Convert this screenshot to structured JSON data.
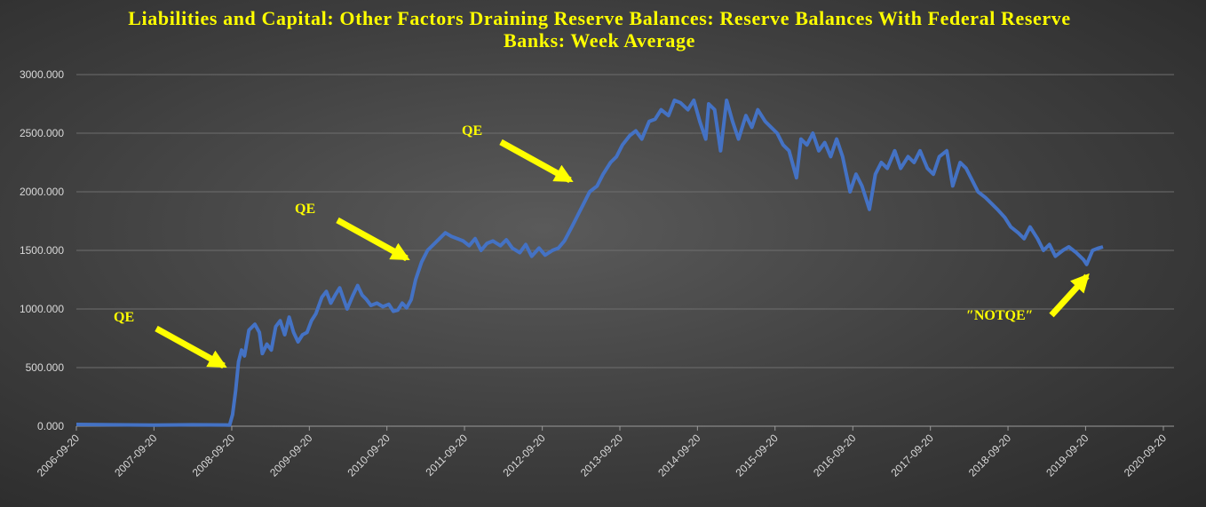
{
  "chart_data": {
    "type": "line",
    "title": "Liabilities and Capital: Other Factors Draining Reserve Balances: Reserve Balances With Federal Reserve Banks: Week Average",
    "annotations": [
      "QE",
      "QE",
      "QE",
      "″NOTQE″"
    ],
    "xlim": [
      "2006-09-20",
      "2020-09-20"
    ],
    "xticks": [
      "2006-09-20",
      "2007-09-20",
      "2008-09-20",
      "2009-09-20",
      "2010-09-20",
      "2011-09-20",
      "2012-09-20",
      "2013-09-20",
      "2014-09-20",
      "2015-09-20",
      "2016-09-20",
      "2017-09-20",
      "2018-09-20",
      "2019-09-20",
      "2020-09-20"
    ],
    "ylim": [
      0,
      3000
    ],
    "yticks": [
      {
        "value": 0,
        "label": "0.000"
      },
      {
        "value": 500,
        "label": "500.000"
      },
      {
        "value": 1000,
        "label": "1000.000"
      },
      {
        "value": 1500,
        "label": "1500.000"
      },
      {
        "value": 2000,
        "label": "2000.000"
      },
      {
        "value": 2500,
        "label": "2500.000"
      },
      {
        "value": 3000,
        "label": "3000.000"
      }
    ],
    "grid": true,
    "series": [
      {
        "name": "Reserve Balances With Federal Reserve Banks: Week Average",
        "color": "#4472c4",
        "x": [
          "2006-09-20",
          "2007-03-21",
          "2007-09-19",
          "2008-03-19",
          "2008-09-10",
          "2008-09-24",
          "2008-10-08",
          "2008-10-22",
          "2008-11-05",
          "2008-11-19",
          "2008-12-10",
          "2009-01-07",
          "2009-01-28",
          "2009-02-11",
          "2009-03-04",
          "2009-03-25",
          "2009-04-15",
          "2009-05-06",
          "2009-05-27",
          "2009-06-17",
          "2009-07-08",
          "2009-07-29",
          "2009-08-19",
          "2009-09-09",
          "2009-09-30",
          "2009-10-21",
          "2009-11-18",
          "2009-12-09",
          "2009-12-30",
          "2010-01-20",
          "2010-02-10",
          "2010-03-03",
          "2010-03-17",
          "2010-04-14",
          "2010-05-05",
          "2010-05-26",
          "2010-06-16",
          "2010-07-07",
          "2010-08-04",
          "2010-09-01",
          "2010-09-29",
          "2010-10-20",
          "2010-11-10",
          "2010-12-01",
          "2010-12-22",
          "2011-01-12",
          "2011-02-02",
          "2011-03-02",
          "2011-03-30",
          "2011-04-27",
          "2011-05-25",
          "2011-06-22",
          "2011-07-20",
          "2011-08-17",
          "2011-09-14",
          "2011-10-12",
          "2011-11-09",
          "2011-12-07",
          "2012-01-04",
          "2012-02-01",
          "2012-03-07",
          "2012-04-04",
          "2012-05-02",
          "2012-06-06",
          "2012-07-04",
          "2012-08-01",
          "2012-09-05",
          "2012-10-03",
          "2012-11-07",
          "2012-12-05",
          "2013-01-02",
          "2013-02-06",
          "2013-03-06",
          "2013-04-03",
          "2013-05-01",
          "2013-06-05",
          "2013-07-03",
          "2013-08-07",
          "2013-09-04",
          "2013-10-02",
          "2013-11-06",
          "2013-12-04",
          "2014-01-01",
          "2014-02-05",
          "2014-03-05",
          "2014-04-02",
          "2014-05-07",
          "2014-06-04",
          "2014-07-02",
          "2014-08-06",
          "2014-09-03",
          "2014-10-01",
          "2014-10-29",
          "2014-11-12",
          "2014-12-10",
          "2015-01-07",
          "2015-02-04",
          "2015-03-04",
          "2015-04-01",
          "2015-05-06",
          "2015-06-03",
          "2015-07-01",
          "2015-08-05",
          "2015-09-02",
          "2015-09-30",
          "2015-10-28",
          "2015-11-25",
          "2015-12-30",
          "2016-01-20",
          "2016-02-17",
          "2016-03-16",
          "2016-04-13",
          "2016-05-11",
          "2016-06-08",
          "2016-07-06",
          "2016-08-03",
          "2016-09-07",
          "2016-10-05",
          "2016-11-02",
          "2016-12-07",
          "2017-01-04",
          "2017-02-01",
          "2017-03-01",
          "2017-04-05",
          "2017-05-03",
          "2017-06-07",
          "2017-07-05",
          "2017-08-02",
          "2017-09-06",
          "2017-10-04",
          "2017-11-01",
          "2017-12-06",
          "2018-01-03",
          "2018-02-07",
          "2018-03-07",
          "2018-04-04",
          "2018-05-02",
          "2018-06-06",
          "2018-07-04",
          "2018-08-01",
          "2018-09-05",
          "2018-10-03",
          "2018-11-07",
          "2018-12-05",
          "2019-01-02",
          "2019-02-06",
          "2019-03-06",
          "2019-04-03",
          "2019-05-01",
          "2019-06-05",
          "2019-07-03",
          "2019-08-07",
          "2019-09-11",
          "2019-09-25",
          "2019-10-23",
          "2019-11-20",
          "2019-12-11"
        ],
        "values": [
          15,
          12,
          10,
          12,
          10,
          100,
          300,
          550,
          650,
          600,
          820,
          870,
          800,
          620,
          700,
          650,
          850,
          900,
          780,
          930,
          800,
          720,
          780,
          800,
          900,
          960,
          1100,
          1150,
          1050,
          1120,
          1180,
          1070,
          1000,
          1120,
          1200,
          1120,
          1080,
          1030,
          1050,
          1020,
          1040,
          980,
          990,
          1050,
          1010,
          1080,
          1250,
          1400,
          1500,
          1550,
          1600,
          1650,
          1620,
          1600,
          1580,
          1540,
          1600,
          1500,
          1560,
          1580,
          1540,
          1590,
          1520,
          1480,
          1550,
          1450,
          1520,
          1460,
          1500,
          1520,
          1580,
          1700,
          1800,
          1900,
          2000,
          2050,
          2150,
          2250,
          2300,
          2400,
          2480,
          2520,
          2450,
          2600,
          2620,
          2700,
          2650,
          2780,
          2760,
          2700,
          2780,
          2600,
          2450,
          2750,
          2700,
          2350,
          2780,
          2600,
          2450,
          2650,
          2550,
          2700,
          2600,
          2550,
          2500,
          2400,
          2350,
          2120,
          2450,
          2400,
          2500,
          2350,
          2420,
          2300,
          2450,
          2300,
          2000,
          2150,
          2050,
          1850,
          2150,
          2250,
          2200,
          2350,
          2200,
          2300,
          2250,
          2350,
          2200,
          2150,
          2300,
          2350,
          2050,
          2250,
          2200,
          2100,
          2000,
          1950,
          1900,
          1850,
          1780,
          1700,
          1650,
          1600,
          1700,
          1600,
          1500,
          1550,
          1450,
          1500,
          1530,
          1480,
          1420,
          1380,
          1500,
          1520,
          1530
        ]
      }
    ]
  }
}
